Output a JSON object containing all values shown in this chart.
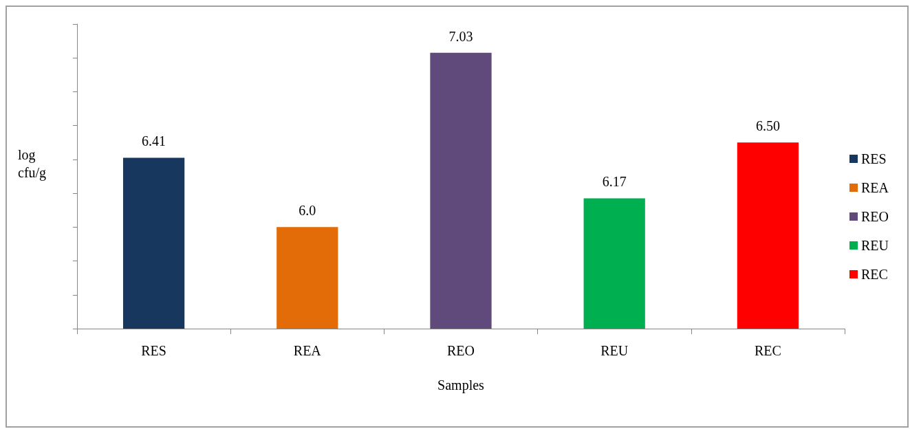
{
  "chart_data": {
    "type": "bar",
    "xlabel": "Samples",
    "ylabel": "log cfu/g",
    "categories": [
      "RES",
      "REA",
      "REO",
      "REU",
      "REC"
    ],
    "series": [
      {
        "name": "RES",
        "color": "#17375e",
        "values": [
          6.41,
          null,
          null,
          null,
          null
        ],
        "value_labels": [
          "6.41",
          null,
          null,
          null,
          null
        ]
      },
      {
        "name": "REA",
        "color": "#e36c09",
        "values": [
          null,
          6.0,
          null,
          null,
          null
        ],
        "value_labels": [
          null,
          "6.0",
          null,
          null,
          null
        ]
      },
      {
        "name": "REO",
        "color": "#604a7b",
        "values": [
          null,
          null,
          7.03,
          null,
          null
        ],
        "value_labels": [
          null,
          null,
          "7.03",
          null,
          null
        ]
      },
      {
        "name": "REU",
        "color": "#00b050",
        "values": [
          null,
          null,
          null,
          6.17,
          null
        ],
        "value_labels": [
          null,
          null,
          null,
          "6.17",
          null
        ]
      },
      {
        "name": "REC",
        "color": "#ff0000",
        "values": [
          null,
          null,
          null,
          null,
          6.5
        ],
        "value_labels": [
          null,
          null,
          null,
          null,
          "6.50"
        ]
      }
    ],
    "ylim": [
      5.4,
      7.2
    ],
    "yticks": [
      {
        "value": 5.4,
        "label": null
      },
      {
        "value": 5.6,
        "label": null
      },
      {
        "value": 5.8,
        "label": null
      },
      {
        "value": 6.0,
        "label": null
      },
      {
        "value": 6.2,
        "label": null
      },
      {
        "value": 6.4,
        "label": null
      },
      {
        "value": 6.6,
        "label": null
      },
      {
        "value": 6.8,
        "label": null
      },
      {
        "value": 7.0,
        "label": null
      },
      {
        "value": 7.2,
        "label": null
      }
    ],
    "tick_labels": "x",
    "grid": false,
    "legend": "right"
  }
}
